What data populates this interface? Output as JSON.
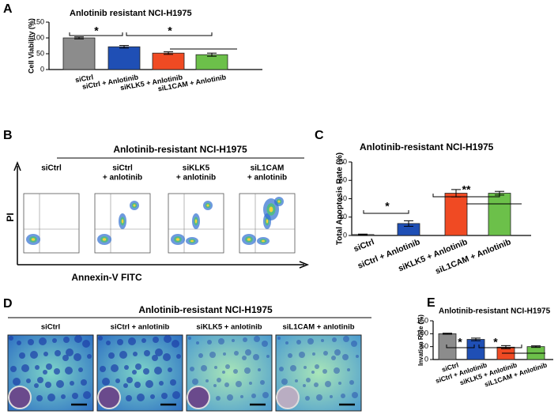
{
  "chart_data": [
    {
      "type": "bar",
      "panel": "A",
      "title": "Anlotinib resistant NCI-H1975",
      "y_label": "Cell Viability (%)",
      "categories": [
        "siCtrl",
        "siCtrl + Anlotinib",
        "siKLK5 + Anlotinib",
        "siL1CAM + Anlotinib"
      ],
      "values": [
        100,
        72,
        52,
        47
      ],
      "errors": [
        3,
        4,
        4,
        5
      ],
      "colors": [
        "#8c8c8c",
        "#1f4fb5",
        "#f04a23",
        "#6cc04a"
      ],
      "ylim": [
        0,
        150
      ],
      "yticks": [
        0,
        50,
        100,
        150
      ],
      "annotations": [
        "*",
        "*"
      ]
    },
    {
      "type": "bar",
      "panel": "C",
      "title": "Anlotinib-resistant NCI-H1975",
      "y_label": "Total Apoptosis Rate (%)",
      "categories": [
        "siCtrl",
        "siCtrl + Anlotinib",
        "siKLK5 + Anlotinib",
        "siL1CAM + Anlotinib"
      ],
      "values": [
        1,
        13,
        46,
        46
      ],
      "errors": [
        0.5,
        3,
        4,
        2
      ],
      "colors": [
        "#8c8c8c",
        "#1f4fb5",
        "#f04a23",
        "#6cc04a"
      ],
      "ylim": [
        0,
        80
      ],
      "yticks": [
        0,
        20,
        40,
        60,
        80
      ],
      "annotations": [
        "*",
        "**"
      ]
    },
    {
      "type": "bar",
      "panel": "E",
      "title": "Anlotinib-resistant NCI-H1975",
      "y_label": "Invation Rate (%)",
      "categories": [
        "siCtrl",
        "siCtrl + Anlotinib",
        "siKLK5 + Anlotinib",
        "siL1CAM + Anlotinib"
      ],
      "values": [
        100,
        78,
        48,
        50
      ],
      "errors": [
        2,
        5,
        6,
        3
      ],
      "colors": [
        "#8c8c8c",
        "#1f4fb5",
        "#f04a23",
        "#6cc04a"
      ],
      "ylim": [
        0,
        150
      ],
      "yticks": [
        0,
        50,
        100,
        150
      ],
      "annotations": [
        "*",
        "*"
      ]
    }
  ],
  "panel_b": {
    "panel": "B",
    "title": "Anlotinib-resistant NCI-H1975",
    "columns": [
      [
        "siCtrl"
      ],
      [
        "siCtrl",
        "+ anlotinib"
      ],
      [
        "siKLK5",
        "+ anlotinib"
      ],
      [
        "siL1CAM",
        "+ anlotinib"
      ]
    ],
    "y_label": "PI",
    "x_label": "Annexin-V FITC"
  },
  "panel_d": {
    "panel": "D",
    "title": "Anlotinib-resistant NCI-H1975",
    "columns": [
      "siCtrl",
      "siCtrl + anlotinib",
      "siKLK5 + anlotinib",
      "siL1CAM + anlotinib"
    ]
  }
}
